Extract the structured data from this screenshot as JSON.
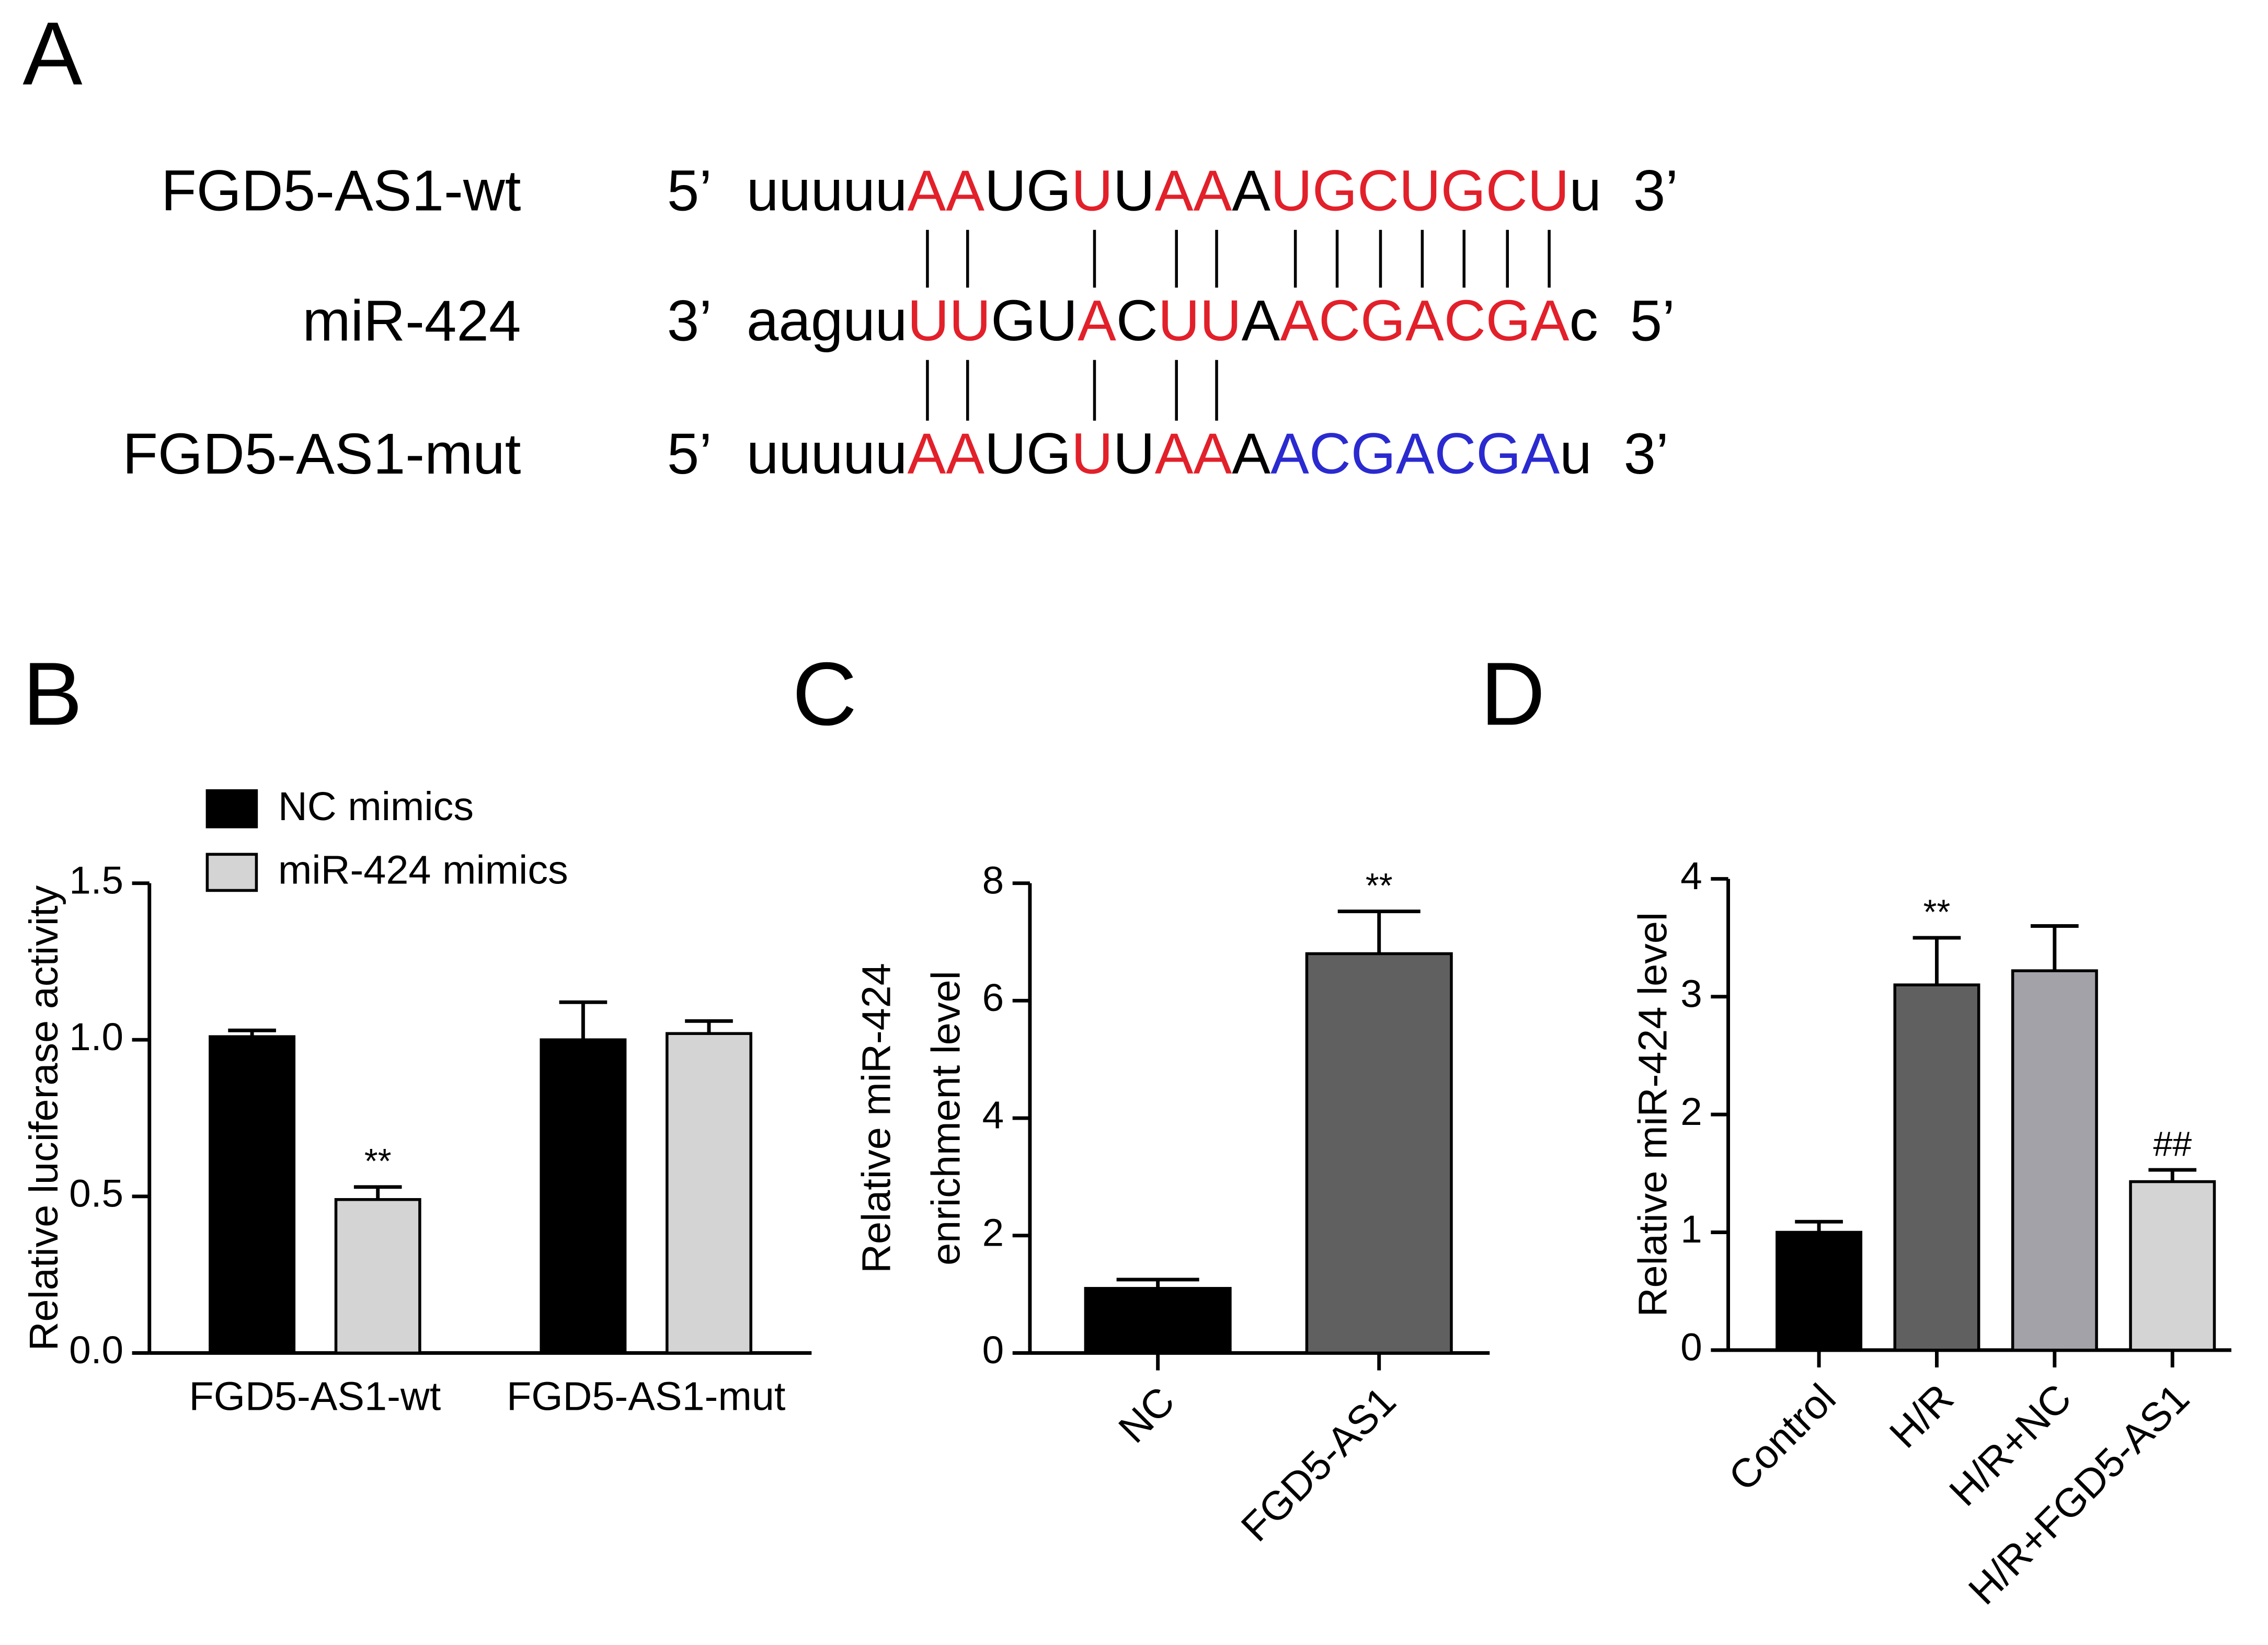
{
  "panel_a": {
    "panel_label": "A",
    "rows": [
      {
        "name": "FGD5-AS1-wt",
        "left": "5’",
        "right": "3’",
        "segments": [
          {
            "text": "uuuuu",
            "color": "#000000"
          },
          {
            "text": "AA",
            "color": "#e2202a"
          },
          {
            "text": "UG",
            "color": "#000000"
          },
          {
            "text": "U",
            "color": "#e2202a"
          },
          {
            "text": "U",
            "color": "#000000"
          },
          {
            "text": "AA",
            "color": "#e2202a"
          },
          {
            "text": "A",
            "color": "#000000"
          },
          {
            "text": "UGCUGCU",
            "color": "#e2202a"
          },
          {
            "text": "u",
            "color": "#000000"
          }
        ]
      },
      {
        "name": "miR-424",
        "left": "3’",
        "right": "5’",
        "segments": [
          {
            "text": "aaguu",
            "color": "#000000"
          },
          {
            "text": "UU",
            "color": "#e2202a"
          },
          {
            "text": "GU",
            "color": "#000000"
          },
          {
            "text": "A",
            "color": "#e2202a"
          },
          {
            "text": "C",
            "color": "#000000"
          },
          {
            "text": "UU",
            "color": "#e2202a"
          },
          {
            "text": "A",
            "color": "#000000"
          },
          {
            "text": "ACGACGA",
            "color": "#e2202a"
          },
          {
            "text": "c",
            "color": "#000000"
          }
        ]
      },
      {
        "name": "FGD5-AS1-mut",
        "left": "5’",
        "right": "3’",
        "segments": [
          {
            "text": "uuuuu",
            "color": "#000000"
          },
          {
            "text": "AA",
            "color": "#e2202a"
          },
          {
            "text": "UG",
            "color": "#000000"
          },
          {
            "text": "U",
            "color": "#e2202a"
          },
          {
            "text": "U",
            "color": "#000000"
          },
          {
            "text": "AA",
            "color": "#e2202a"
          },
          {
            "text": "A",
            "color": "#000000"
          },
          {
            "text": "ACGACGA",
            "color": "#2a2ad0"
          },
          {
            "text": "u",
            "color": "#000000"
          }
        ]
      }
    ]
  },
  "chart_data": [
    {
      "type": "bar",
      "panel_label": "B",
      "ylabel": [
        "Relative luciferase activity"
      ],
      "categories": [
        "FGD5-AS1-wt",
        "FGD5-AS1-mut"
      ],
      "series": [
        {
          "name": "NC mimics",
          "color": "#000000",
          "values": [
            1.01,
            1.0
          ],
          "errors": [
            0.02,
            0.12
          ],
          "annotations": [
            null,
            null
          ]
        },
        {
          "name": "miR-424 mimics",
          "color": "#d4d4d4",
          "values": [
            0.49,
            1.02
          ],
          "errors": [
            0.04,
            0.04
          ],
          "annotations": [
            "**",
            null
          ]
        }
      ],
      "ylim": [
        0,
        1.5
      ],
      "yticks": [
        {
          "value": 0,
          "label": "0.0"
        },
        {
          "value": 0.5,
          "label": "0.5"
        },
        {
          "value": 1,
          "label": "1.0"
        },
        {
          "value": 1.5,
          "label": "1.5"
        }
      ],
      "legend": "top-left"
    },
    {
      "type": "bar",
      "panel_label": "C",
      "ylabel": [
        "Relative miR-424",
        "enrichment level"
      ],
      "categories": [
        "NC",
        "FGD5-AS1"
      ],
      "values": [
        1.1,
        6.8
      ],
      "errors": [
        0.15,
        0.72
      ],
      "colors": [
        "#000000",
        "#606060"
      ],
      "annotations": [
        null,
        "**"
      ],
      "ylim": [
        0,
        8
      ],
      "yticks": [
        0,
        2,
        4,
        6,
        8
      ]
    },
    {
      "type": "bar",
      "panel_label": "D",
      "ylabel": [
        "Relative miR-424 level"
      ],
      "categories": [
        "Control",
        "H/R",
        "H/R+NC",
        "H/R+FGD5-AS1"
      ],
      "values": [
        1.0,
        3.1,
        3.22,
        1.43
      ],
      "errors": [
        0.09,
        0.4,
        0.38,
        0.1
      ],
      "colors": [
        "#000000",
        "#606060",
        "#a2a2a8",
        "#d4d4d4"
      ],
      "annotations": [
        null,
        "**",
        null,
        "##"
      ],
      "ylim": [
        0,
        4
      ],
      "yticks": [
        0,
        1,
        2,
        3,
        4
      ]
    }
  ]
}
